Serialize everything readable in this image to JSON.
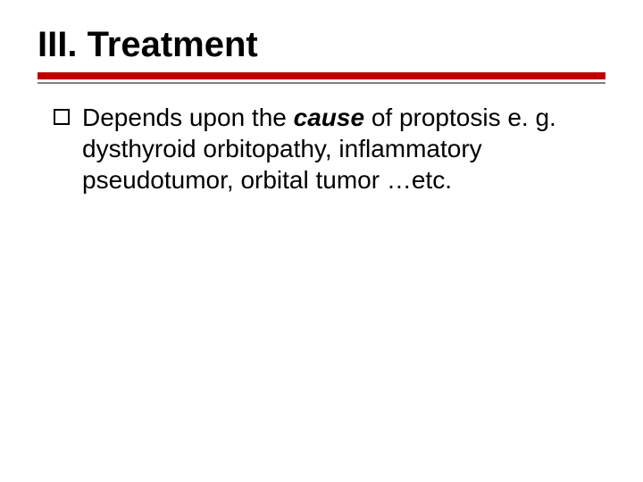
{
  "slide": {
    "title": "III. Treatment",
    "accent_color": "#c00000",
    "thin_rule_color": "#808080",
    "background_color": "#ffffff",
    "text_color": "#000000",
    "title_fontsize": 40,
    "body_fontsize": 28,
    "bullets": [
      {
        "text_before": "Depends upon the ",
        "text_emph": "cause",
        "text_after": " of proptosis e. g. dysthyroid orbitopathy, inflammatory pseudotumor, orbital tumor …etc."
      }
    ]
  }
}
